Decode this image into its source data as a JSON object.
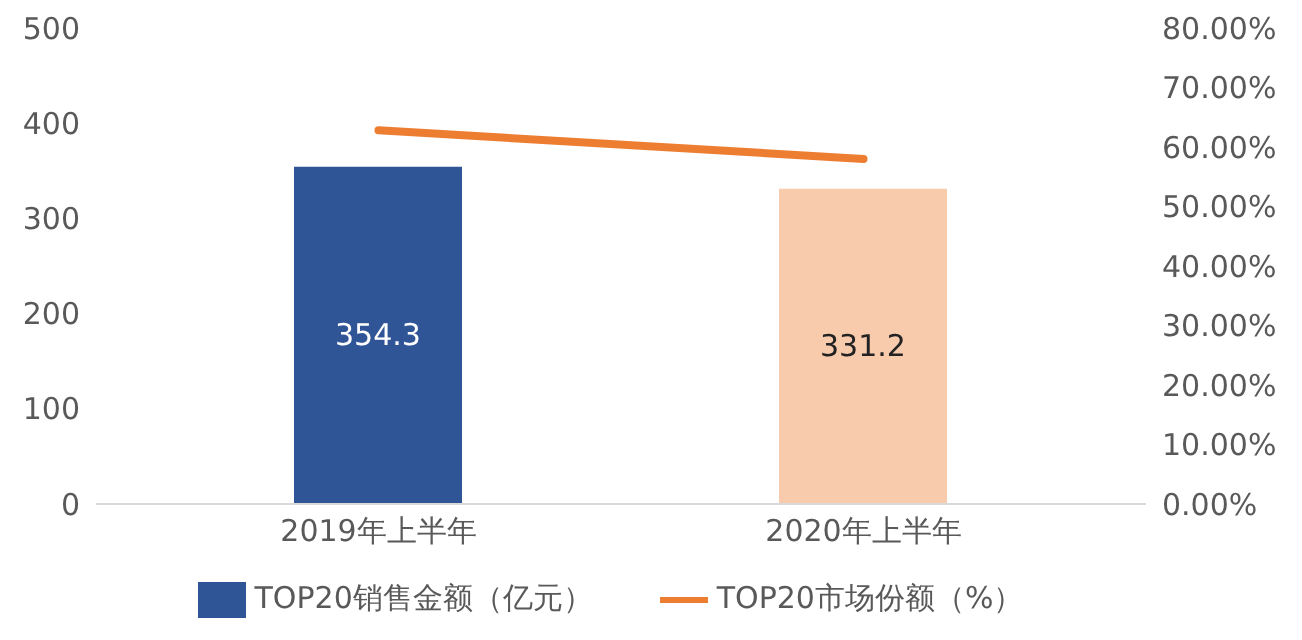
{
  "chart_data": {
    "type": "bar",
    "categories": [
      "2019年上半年",
      "2020年上半年"
    ],
    "series": [
      {
        "name": "TOP20销售金额（亿元）",
        "color": "#2f5597",
        "colors": [
          "#2f5597",
          "#f8cbad"
        ],
        "values": [
          354.3,
          331.2
        ],
        "value_labels": [
          "354.3",
          "331.2"
        ]
      },
      {
        "name": "TOP20市场份额（%）",
        "type": "line",
        "axis": "y2",
        "color": "#ed7d31",
        "values": [
          62.8,
          58.0
        ],
        "marker": "none"
      }
    ],
    "ylim": [
      0,
      500
    ],
    "yticks": [
      0,
      100,
      200,
      300,
      400,
      500
    ],
    "y2lim": [
      0,
      80
    ],
    "y2ticks": [
      {
        "value": 0,
        "label": "0.00%"
      },
      {
        "value": 10,
        "label": "10.00%"
      },
      {
        "value": 20,
        "label": "20.00%"
      },
      {
        "value": 30,
        "label": "30.00%"
      },
      {
        "value": 40,
        "label": "40.00%"
      },
      {
        "value": 50,
        "label": "50.00%"
      },
      {
        "value": 60,
        "label": "60.00%"
      },
      {
        "value": 70,
        "label": "70.00%"
      },
      {
        "value": 80,
        "label": "80.00%"
      }
    ],
    "grid": false,
    "legend": "bottom"
  }
}
